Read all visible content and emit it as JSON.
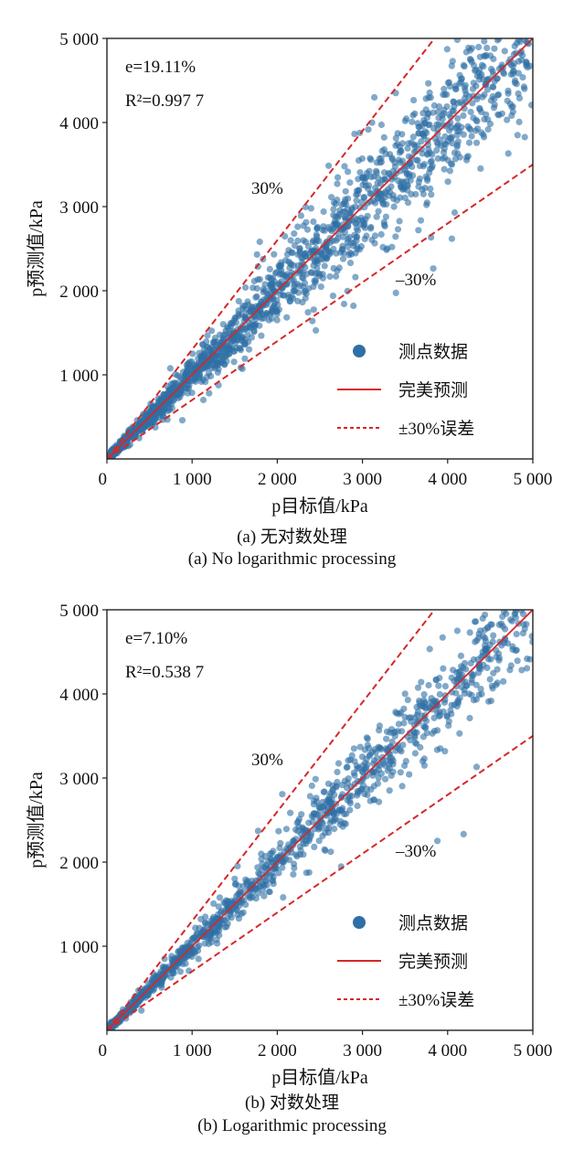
{
  "chart_data": [
    {
      "type": "scatter",
      "xlabel": "p目标值/kPa",
      "ylabel": "p预测值/kPa",
      "xlim": [
        0,
        5000
      ],
      "ylim": [
        0,
        5000
      ],
      "x_ticks": [
        "0",
        "1 000",
        "2 000",
        "3 000",
        "4 000",
        "5 000"
      ],
      "y_ticks": [
        "1 000",
        "2 000",
        "3 000",
        "4 000",
        "5 000"
      ],
      "annotations": {
        "e": "e=19.11%",
        "r2": "R²=0.997 7",
        "upper": "30%",
        "lower": "–30%"
      },
      "legend": {
        "placement": "lower-right",
        "entries": [
          "测点数据",
          "完美预测",
          "±30%误差"
        ]
      },
      "series": [
        {
          "name": "测点数据",
          "style": "scatter",
          "color": "#2e6fa5",
          "n_points": 1800,
          "relative_spread": 0.1,
          "note_values": "dense cloud along y = x"
        },
        {
          "name": "完美预测",
          "style": "solid-line",
          "color": "#d62728",
          "x": [
            0,
            5000
          ],
          "y": [
            0,
            5000
          ]
        },
        {
          "name": "±30%误差",
          "style": "dashed-line",
          "color": "#d62728",
          "lines": [
            {
              "x": [
                0,
                3846
              ],
              "y": [
                0,
                5000
              ]
            },
            {
              "x": [
                0,
                5000
              ],
              "y": [
                0,
                3500
              ]
            }
          ]
        }
      ],
      "caption_cn": "(a) 无对数处理",
      "caption_en": "(a) No logarithmic processing"
    },
    {
      "type": "scatter",
      "xlabel": "p目标值/kPa",
      "ylabel": "p预测值/kPa",
      "xlim": [
        0,
        5000
      ],
      "ylim": [
        0,
        5000
      ],
      "x_ticks": [
        "0",
        "1 000",
        "2 000",
        "3 000",
        "4 000",
        "5 000"
      ],
      "y_ticks": [
        "1 000",
        "2 000",
        "3 000",
        "4 000",
        "5 000"
      ],
      "annotations": {
        "e": "e=7.10%",
        "r2": "R²=0.538 7",
        "upper": "30%",
        "lower": "–30%"
      },
      "legend": {
        "placement": "lower-right",
        "entries": [
          "测点数据",
          "完美预测",
          "±30%误差"
        ]
      },
      "series": [
        {
          "name": "测点数据",
          "style": "scatter",
          "color": "#2e6fa5",
          "n_points": 1200,
          "relative_spread": 0.07,
          "note_values": "dense cloud along y = x"
        },
        {
          "name": "完美预测",
          "style": "solid-line",
          "color": "#d62728",
          "x": [
            0,
            5000
          ],
          "y": [
            0,
            5000
          ]
        },
        {
          "name": "±30%误差",
          "style": "dashed-line",
          "color": "#d62728",
          "lines": [
            {
              "x": [
                0,
                3846
              ],
              "y": [
                0,
                5000
              ]
            },
            {
              "x": [
                0,
                5000
              ],
              "y": [
                0,
                3500
              ]
            }
          ]
        }
      ],
      "caption_cn": "(b) 对数处理",
      "caption_en": "(b) Logarithmic processing"
    }
  ]
}
